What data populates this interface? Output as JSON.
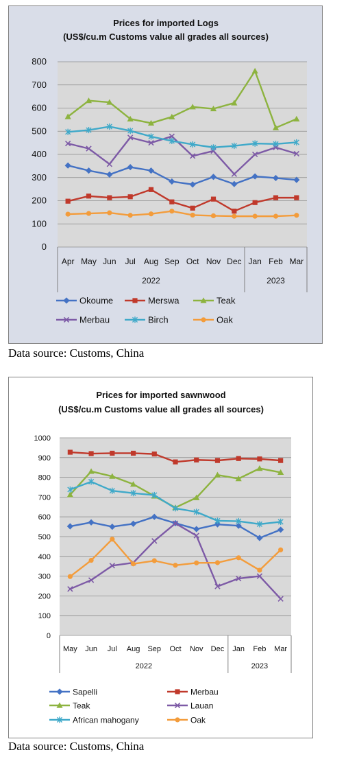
{
  "charts": [
    {
      "type": "line",
      "title": "Prices for imported Logs",
      "subtitle": "(US$/cu.m Customs value all grades all sources)",
      "categories": [
        "Apr",
        "May",
        "Jun",
        "Jul",
        "Aug",
        "Sep",
        "Oct",
        "Nov",
        "Dec",
        "Jan",
        "Feb",
        "Mar"
      ],
      "years": [
        {
          "label": "2022",
          "span": 9
        },
        {
          "label": "2023",
          "span": 3
        }
      ],
      "ylim": [
        0,
        800
      ],
      "yticks": [
        0,
        100,
        200,
        300,
        400,
        500,
        600,
        700,
        800
      ],
      "grid": true,
      "legend_placement": "bottom",
      "series": [
        {
          "name": "Okoume",
          "color": "#4472C4",
          "marker": "diamond",
          "values": [
            352,
            330,
            313,
            345,
            330,
            283,
            270,
            303,
            272,
            305,
            298,
            290
          ]
        },
        {
          "name": "Merswa",
          "color": "#C0392B",
          "marker": "square",
          "values": [
            198,
            220,
            213,
            217,
            248,
            195,
            168,
            207,
            155,
            192,
            213,
            213
          ]
        },
        {
          "name": "Teak",
          "color": "#8DB33F",
          "marker": "triangle",
          "values": [
            563,
            632,
            625,
            553,
            535,
            562,
            605,
            597,
            622,
            760,
            515,
            553
          ]
        },
        {
          "name": "Merbau",
          "color": "#7D5AA6",
          "marker": "x",
          "values": [
            447,
            425,
            358,
            473,
            450,
            478,
            393,
            415,
            315,
            400,
            430,
            403
          ]
        },
        {
          "name": "Birch",
          "color": "#3FA9C9",
          "marker": "star",
          "values": [
            497,
            505,
            520,
            502,
            477,
            458,
            443,
            430,
            437,
            447,
            445,
            452
          ]
        },
        {
          "name": "Oak",
          "color": "#F39C3B",
          "marker": "circle",
          "values": [
            142,
            145,
            148,
            137,
            143,
            155,
            138,
            135,
            133,
            133,
            133,
            137
          ]
        }
      ]
    },
    {
      "type": "line",
      "title": "Prices for imported sawnwood",
      "subtitle": "(US$/cu.m Customs value all grades all sources)",
      "categories": [
        "May",
        "Jun",
        "Jul",
        "Aug",
        "Sep",
        "Oct",
        "Nov",
        "Dec",
        "Jan",
        "Feb",
        "Mar"
      ],
      "years": [
        {
          "label": "2022",
          "span": 8
        },
        {
          "label": "2023",
          "span": 3
        }
      ],
      "ylim": [
        0,
        1000
      ],
      "yticks": [
        0,
        100,
        200,
        300,
        400,
        500,
        600,
        700,
        800,
        900,
        1000
      ],
      "grid": true,
      "legend_placement": "bottom",
      "series": [
        {
          "name": "Sapelli",
          "color": "#4472C4",
          "marker": "diamond",
          "values": [
            552,
            572,
            550,
            565,
            600,
            568,
            538,
            562,
            555,
            493,
            535
          ]
        },
        {
          "name": "Merbau",
          "color": "#C0392B",
          "marker": "square",
          "values": [
            927,
            920,
            922,
            922,
            918,
            878,
            888,
            885,
            895,
            893,
            885
          ]
        },
        {
          "name": "Teak",
          "color": "#8DB33F",
          "marker": "triangle",
          "values": [
            712,
            830,
            805,
            765,
            705,
            647,
            697,
            812,
            793,
            845,
            825
          ]
        },
        {
          "name": "Lauan",
          "color": "#7D5AA6",
          "marker": "x",
          "values": [
            235,
            280,
            353,
            368,
            478,
            567,
            505,
            248,
            288,
            300,
            185
          ]
        },
        {
          "name": "African mahogany",
          "color": "#3FA9C9",
          "marker": "star",
          "values": [
            738,
            778,
            732,
            720,
            710,
            643,
            625,
            580,
            578,
            563,
            575
          ]
        },
        {
          "name": "Oak",
          "color": "#F39C3B",
          "marker": "circle",
          "values": [
            298,
            380,
            487,
            362,
            378,
            355,
            367,
            368,
            393,
            330,
            433
          ]
        }
      ]
    }
  ],
  "source_note": "Data source: Customs, China"
}
